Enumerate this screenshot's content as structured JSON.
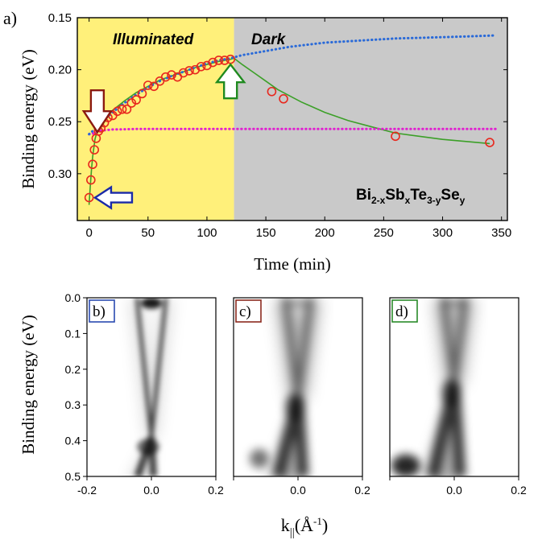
{
  "chart_data": [
    {
      "panel": "a)",
      "type": "scatter",
      "xlabel": "Time (min)",
      "ylabel": "Binding energy (eV)",
      "xlim": [
        -10,
        355
      ],
      "ylim": [
        0.15,
        0.345
      ],
      "y_inverted": true,
      "x_ticks": [
        0,
        50,
        100,
        150,
        200,
        250,
        300,
        350
      ],
      "y_ticks": [
        0.15,
        0.2,
        0.25,
        0.3
      ],
      "y_tick_labels": [
        "0.15",
        "0.20",
        "0.25",
        "0.30"
      ],
      "regions": [
        {
          "label": "Illuminated",
          "x_start": -10,
          "x_end": 123,
          "color": "#fff07a"
        },
        {
          "label": "Dark",
          "x_start": 123,
          "x_end": 355,
          "color": "#c9c9c9"
        }
      ],
      "compound_label": {
        "parts": [
          {
            "text": "Bi",
            "sub": false
          },
          {
            "text": "2-x",
            "sub": true
          },
          {
            "text": "Sb",
            "sub": false
          },
          {
            "text": "x",
            "sub": true
          },
          {
            "text": "Te",
            "sub": false
          },
          {
            "text": "3-y",
            "sub": true
          },
          {
            "text": "Se",
            "sub": false
          },
          {
            "text": "y",
            "sub": true
          }
        ]
      },
      "series": [
        {
          "marker": "open-circle",
          "color": "#e8281e",
          "x": [
            0,
            1.5,
            3,
            4.5,
            6,
            8,
            10,
            13,
            16,
            20,
            24,
            28,
            32,
            36,
            40,
            45,
            50,
            55,
            60,
            65,
            70,
            75,
            80,
            85,
            90,
            95,
            100,
            105,
            110,
            115,
            120,
            155,
            165,
            260,
            340
          ],
          "y": [
            0.323,
            0.306,
            0.291,
            0.277,
            0.266,
            0.259,
            0.256,
            0.251,
            0.246,
            0.244,
            0.24,
            0.238,
            0.238,
            0.232,
            0.229,
            0.223,
            0.215,
            0.216,
            0.211,
            0.207,
            0.205,
            0.207,
            0.203,
            0.201,
            0.2,
            0.197,
            0.196,
            0.193,
            0.191,
            0.191,
            0.19,
            0.221,
            0.228,
            0.264,
            0.27
          ]
        },
        {
          "style": "solid-line",
          "color": "#3ca028",
          "x": [
            0,
            1,
            2,
            3,
            5,
            7,
            10,
            15,
            20,
            30,
            40,
            50,
            60,
            70,
            80,
            90,
            100,
            110,
            120,
            123,
            130,
            140,
            150,
            160,
            170,
            180,
            200,
            220,
            240,
            260,
            280,
            300,
            320,
            340
          ],
          "y": [
            0.33,
            0.312,
            0.296,
            0.284,
            0.267,
            0.258,
            0.252,
            0.246,
            0.239,
            0.23,
            0.222,
            0.216,
            0.21,
            0.206,
            0.202,
            0.198,
            0.195,
            0.192,
            0.19,
            0.189,
            0.195,
            0.203,
            0.211,
            0.219,
            0.225,
            0.231,
            0.241,
            0.249,
            0.255,
            0.261,
            0.264,
            0.267,
            0.269,
            0.271
          ]
        },
        {
          "style": "dotted-line",
          "color": "#2a6ad8",
          "x": [
            0,
            5,
            10,
            20,
            30,
            40,
            50,
            60,
            70,
            80,
            90,
            100,
            110,
            120,
            130,
            150,
            170,
            200,
            230,
            260,
            290,
            320,
            345
          ],
          "y": [
            0.262,
            0.257,
            0.251,
            0.241,
            0.232,
            0.224,
            0.217,
            0.211,
            0.206,
            0.202,
            0.198,
            0.194,
            0.191,
            0.189,
            0.186,
            0.182,
            0.178,
            0.174,
            0.172,
            0.17,
            0.169,
            0.168,
            0.167
          ]
        },
        {
          "style": "dotted-line",
          "color": "#e020d0",
          "x": [
            0,
            2,
            4,
            6,
            8,
            10,
            15,
            20,
            40,
            80,
            150,
            250,
            345
          ],
          "y": [
            0.262,
            0.262,
            0.261,
            0.26,
            0.259,
            0.2585,
            0.258,
            0.2575,
            0.257,
            0.257,
            0.257,
            0.257,
            0.257
          ]
        }
      ],
      "annotations": [
        {
          "type": "arrow-down",
          "x": 7,
          "y_tip": 0.26,
          "color": "#8b1a10"
        },
        {
          "type": "arrow-left",
          "x_tip": 5,
          "y": 0.323,
          "color": "#1a2aa8"
        },
        {
          "type": "arrow-up",
          "x": 120,
          "y_tip": 0.195,
          "color": "#1f8a1f"
        }
      ]
    },
    {
      "panel": "b)",
      "type": "heatmap",
      "frame_color": "#2a4ab0",
      "xlabel": "k||(Å-1)",
      "ylabel": "Binding energy (eV)",
      "xlim": [
        -0.2,
        0.2
      ],
      "ylim": [
        0.0,
        0.5
      ],
      "x_ticks": [
        -0.2,
        0.0,
        0.2
      ],
      "x_tick_labels": [
        "-0.2",
        "0.0",
        "0.2"
      ],
      "y_ticks": [
        0.0,
        0.1,
        0.2,
        0.3,
        0.4,
        0.5
      ],
      "y_tick_labels": [
        "0.0",
        "0.1",
        "0.2",
        "0.3",
        "0.4",
        "0.5"
      ],
      "dirac_point_eV": 0.39,
      "fermi_level_eV": 0.0
    },
    {
      "panel": "c)",
      "type": "heatmap",
      "frame_color": "#8b2a1e",
      "xlim": [
        -0.2,
        0.2
      ],
      "ylim": [
        0.0,
        0.5
      ],
      "x_tick_labels": [
        "0.0",
        "0.2"
      ],
      "dirac_point_eV": 0.28
    },
    {
      "panel": "d)",
      "type": "heatmap",
      "frame_color": "#2a8a2a",
      "xlim": [
        -0.2,
        0.2
      ],
      "ylim": [
        0.0,
        0.5
      ],
      "x_tick_labels": [
        "0.0",
        "0.2"
      ],
      "dirac_point_eV": 0.24
    }
  ]
}
